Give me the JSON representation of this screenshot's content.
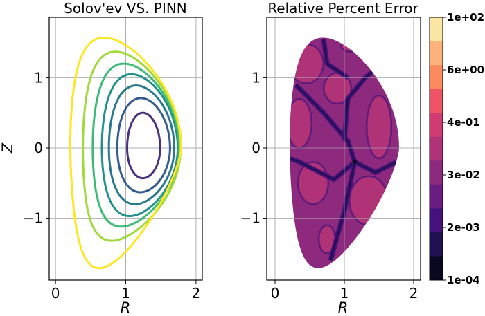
{
  "chart_data": [
    {
      "type": "line",
      "title": "Solov'ev VS. PINN",
      "xlabel": "R",
      "ylabel": "Z",
      "xlim": [
        -0.09,
        2.09
      ],
      "ylim": [
        -1.88,
        1.86
      ],
      "xticks": [
        "0",
        "1",
        "2"
      ],
      "yticks": [
        "−1",
        "0",
        "1"
      ],
      "grid": true,
      "contours": [
        {
          "color": "#46327e",
          "r_range": [
            1.02,
            1.49
          ],
          "z_range": [
            -0.43,
            0.5
          ]
        },
        {
          "color": "#365c8d",
          "r_range": [
            0.88,
            1.63
          ],
          "z_range": [
            -0.63,
            0.71
          ]
        },
        {
          "color": "#2a788e",
          "r_range": [
            0.76,
            1.69
          ],
          "z_range": [
            -0.8,
            0.89
          ]
        },
        {
          "color": "#21918c",
          "r_range": [
            0.66,
            1.74
          ],
          "z_range": [
            -0.97,
            1.05
          ]
        },
        {
          "color": "#3bbb75",
          "r_range": [
            0.53,
            1.76
          ],
          "z_range": [
            -1.12,
            1.2
          ]
        },
        {
          "color": "#9fda3a",
          "r_range": [
            0.39,
            1.78
          ],
          "z_range": [
            -1.32,
            1.37
          ]
        },
        {
          "color": "#fde725",
          "r_range": [
            0.21,
            1.79
          ],
          "z_range": [
            -1.71,
            1.57
          ]
        }
      ]
    },
    {
      "type": "heatmap",
      "title": "Relative Percent Error",
      "xlabel": "R",
      "xlim": [
        -0.12,
        2.1
      ],
      "ylim": [
        -1.88,
        1.86
      ],
      "xticks": [
        "0",
        "1",
        "2"
      ],
      "yticks": [
        "−1",
        "0",
        "1"
      ],
      "grid": true,
      "colormap": "magma",
      "colorbar": {
        "ticks": [
          "1e+02",
          "6e+00",
          "4e-01",
          "3e-02",
          "2e-03",
          "1e-04"
        ],
        "bands": [
          "#fce6a3",
          "#fdb27b",
          "#fb8a5f",
          "#ee5463",
          "#d03c72",
          "#b03378",
          "#8d2a7e",
          "#6a1d80",
          "#45117a",
          "#221150",
          "#0a0720"
        ]
      },
      "field_colors": {
        "base": "#8d2a7e",
        "high": "#b03378",
        "low": "#45117a",
        "lowest": "#221150"
      }
    }
  ]
}
